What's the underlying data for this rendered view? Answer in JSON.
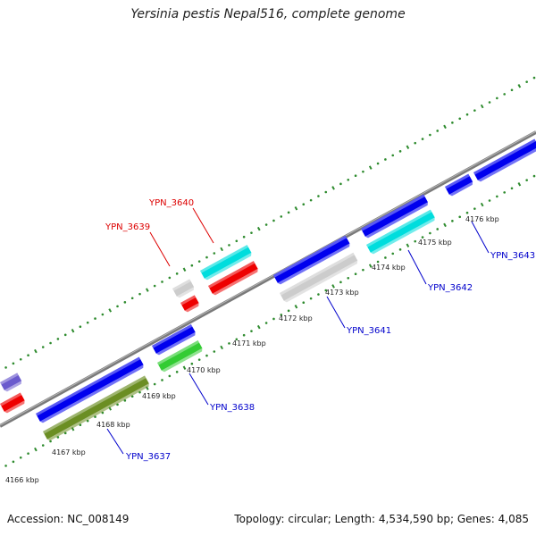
{
  "title": "Yersinia pestis Nepal516, complete genome",
  "footer": {
    "accession": "Accession: NC_008149",
    "summary": "Topology: circular; Length: 4,534,590 bp; Genes: 4,085"
  },
  "colors": {
    "backbone": "#888888",
    "tick": "#2e8b2e",
    "blue": "#0000ee",
    "red": "#ee0000",
    "cyan": "#00dddd",
    "green": "#33cc33",
    "olive": "#6b8e23",
    "grey": "#cccccc",
    "purple": "#6a5acd",
    "label_red": "#dd0000",
    "label_blue": "#0000cc"
  },
  "scale_labels": [
    "4166 kbp",
    "4167 kbp",
    "4168 kbp",
    "4169 kbp",
    "4170 kbp",
    "4171 kbp",
    "4172 kbp",
    "4173 kbp",
    "4174 kbp",
    "4175 kbp",
    "4176 kbp"
  ],
  "genes": [
    {
      "name": "YPN_3637",
      "color": "label_blue"
    },
    {
      "name": "YPN_3638",
      "color": "label_blue"
    },
    {
      "name": "YPN_3639",
      "color": "label_red"
    },
    {
      "name": "YPN_3640",
      "color": "label_red"
    },
    {
      "name": "YPN_3641",
      "color": "label_blue"
    },
    {
      "name": "YPN_3642",
      "color": "label_blue"
    },
    {
      "name": "YPN_3643",
      "color": "label_blue"
    }
  ]
}
